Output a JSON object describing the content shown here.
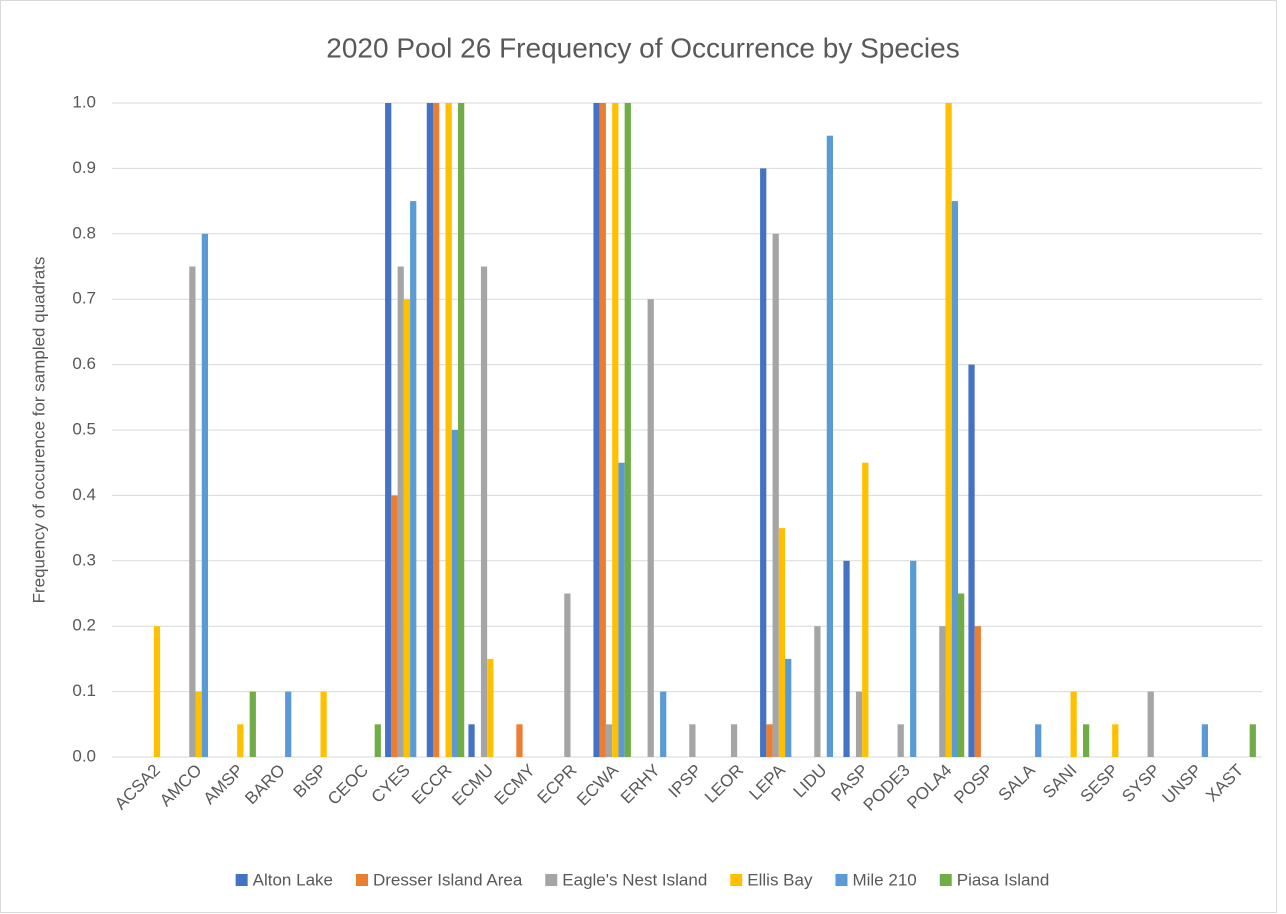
{
  "chart_data": {
    "type": "bar",
    "title": "2020 Pool 26 Frequency of Occurrence by Species",
    "y_label": "Frequency of occurence for sampled quadrats",
    "categories": [
      "ACSA2",
      "AMCO",
      "AMSP",
      "BARO",
      "BISP",
      "CEOC",
      "CYES",
      "ECCR",
      "ECMU",
      "ECMY",
      "ECPR",
      "ECWA",
      "ERHY",
      "IPSP",
      "LEOR",
      "LEPA",
      "LIDU",
      "PASP",
      "PODE3",
      "POLA4",
      "POSP",
      "SALA",
      "SANI",
      "SESP",
      "SYSP",
      "UNSP",
      "XAST"
    ],
    "series": [
      {
        "name": "Alton Lake",
        "color": "#4472c4",
        "values": [
          0,
          0,
          0,
          0,
          0,
          0,
          1,
          1,
          0.05,
          0,
          0,
          1,
          0,
          0,
          0,
          0.9,
          0,
          0.3,
          0,
          0,
          0.6,
          0,
          0,
          0,
          0,
          0,
          0
        ]
      },
      {
        "name": "Dresser Island Area",
        "color": "#ed7d31",
        "values": [
          0,
          0,
          0,
          0,
          0,
          0,
          0.4,
          1,
          0,
          0.05,
          0,
          1,
          0,
          0,
          0,
          0.05,
          0,
          0,
          0,
          0,
          0.2,
          0,
          0,
          0,
          0,
          0,
          0
        ]
      },
      {
        "name": "Eagle's Nest Island",
        "color": "#a5a5a5",
        "values": [
          0,
          0.75,
          0,
          0,
          0,
          0,
          0.75,
          0,
          0.75,
          0,
          0.25,
          0.05,
          0.7,
          0.05,
          0.05,
          0.8,
          0.2,
          0.1,
          0.05,
          0.2,
          0,
          0,
          0,
          0,
          0.1,
          0,
          0
        ]
      },
      {
        "name": "Ellis Bay",
        "color": "#ffc000",
        "values": [
          0.2,
          0.1,
          0.05,
          0,
          0.1,
          0,
          0.7,
          1,
          0.15,
          0,
          0,
          1,
          0,
          0,
          0,
          0.35,
          0,
          0.45,
          0,
          1,
          0,
          0,
          0.1,
          0.05,
          0,
          0,
          0
        ]
      },
      {
        "name": "Mile 210",
        "color": "#5b9bd5",
        "values": [
          0,
          0.8,
          0,
          0.1,
          0,
          0,
          0.85,
          0.5,
          0,
          0,
          0,
          0.45,
          0.1,
          0,
          0,
          0.15,
          0.95,
          0,
          0.3,
          0.85,
          0,
          0.05,
          0,
          0,
          0,
          0.05,
          0
        ]
      },
      {
        "name": "Piasa Island",
        "color": "#70ad47",
        "values": [
          0,
          0,
          0.1,
          0,
          0,
          0.05,
          0,
          1,
          0,
          0,
          0,
          1,
          0,
          0,
          0,
          0,
          0,
          0,
          0,
          0.25,
          0,
          0,
          0.05,
          0,
          0,
          0,
          0.05
        ]
      }
    ],
    "ylim": [
      0,
      1
    ],
    "yticks": [
      {
        "value": 0,
        "label": "0.0"
      },
      0.1,
      0.2,
      0.3,
      0.4,
      0.5,
      0.6,
      0.7,
      0.8,
      0.9,
      {
        "value": 1,
        "label": "1.0"
      }
    ],
    "grid": true,
    "legend": "bottom"
  }
}
